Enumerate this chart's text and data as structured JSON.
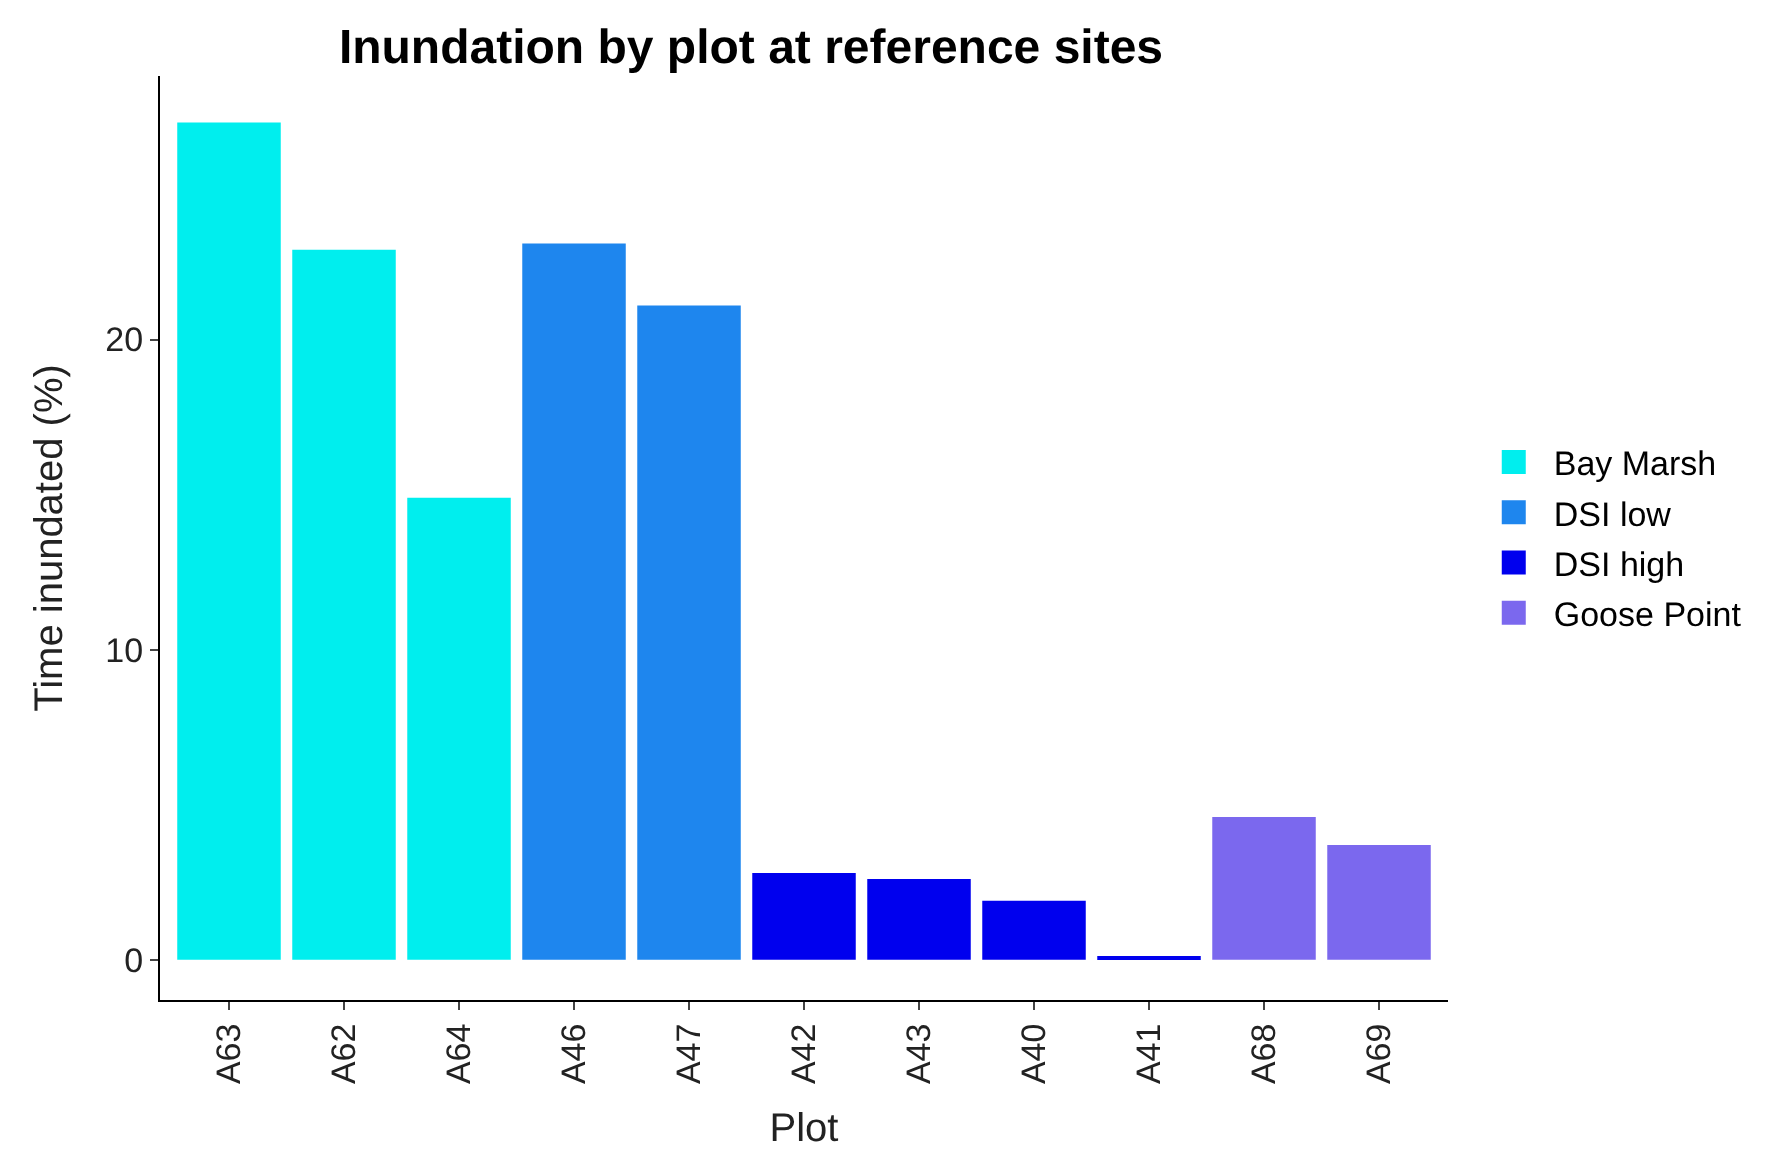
{
  "chart_data": {
    "type": "bar",
    "title": "Inundation by plot at reference sites",
    "xlabel": "Plot",
    "ylabel": "Time inundated (%)",
    "categories": [
      "A63",
      "A62",
      "A64",
      "A46",
      "A47",
      "A42",
      "A43",
      "A40",
      "A41",
      "A68",
      "A69"
    ],
    "series": [
      {
        "name": "Bay Marsh",
        "color": "#00eeee",
        "values": [
          27.0,
          22.9,
          14.9,
          null,
          null,
          null,
          null,
          null,
          null,
          null,
          null
        ]
      },
      {
        "name": "DSI low",
        "color": "#1e86ee",
        "values": [
          null,
          null,
          null,
          23.1,
          21.1,
          null,
          null,
          null,
          null,
          null,
          null
        ]
      },
      {
        "name": "DSI high",
        "color": "#0000ee",
        "values": [
          null,
          null,
          null,
          null,
          null,
          2.8,
          2.6,
          1.9,
          0.1,
          null,
          null
        ]
      },
      {
        "name": "Goose Point",
        "color": "#7b68ee",
        "values": [
          null,
          null,
          null,
          null,
          null,
          null,
          null,
          null,
          null,
          4.6,
          3.7
        ]
      }
    ],
    "ylim": [
      -1.3,
      28.5
    ],
    "yticks": [
      0,
      10,
      20
    ],
    "legend": "right"
  }
}
